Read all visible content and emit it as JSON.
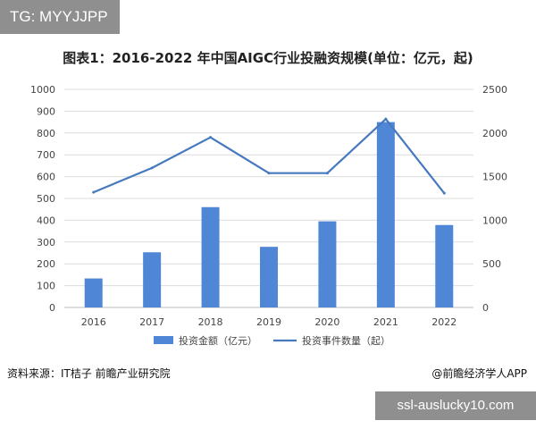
{
  "overlay_top": "TG: MYYJJPP",
  "overlay_bottom": "ssl-auslucky10.com",
  "source": "资料来源：IT桔子 前瞻产业研究院",
  "credit": "@前瞻经济学人APP",
  "colors": {
    "bar": "#4f86d6",
    "line": "#4679bd",
    "grid": "#dcdcdc"
  },
  "chart_data": {
    "type": "bar",
    "title": "图表1：2016-2022 年中国AIGC行业投融资规模(单位：亿元，起)",
    "categories": [
      "2016",
      "2017",
      "2018",
      "2019",
      "2020",
      "2021",
      "2022"
    ],
    "series": [
      {
        "name": "投资金额（亿元）",
        "type": "bar",
        "axis": "left",
        "values": [
          133,
          253,
          460,
          278,
          395,
          850,
          378
        ]
      },
      {
        "name": "投资事件数量（起）",
        "type": "line",
        "axis": "right",
        "values": [
          1320,
          1600,
          1950,
          1540,
          1540,
          2160,
          1310
        ]
      }
    ],
    "y_left": {
      "min": 0,
      "max": 1000,
      "step": 100
    },
    "y_right": {
      "min": 0,
      "max": 2500,
      "step": 500
    },
    "grid": true,
    "legend_position": "bottom"
  }
}
